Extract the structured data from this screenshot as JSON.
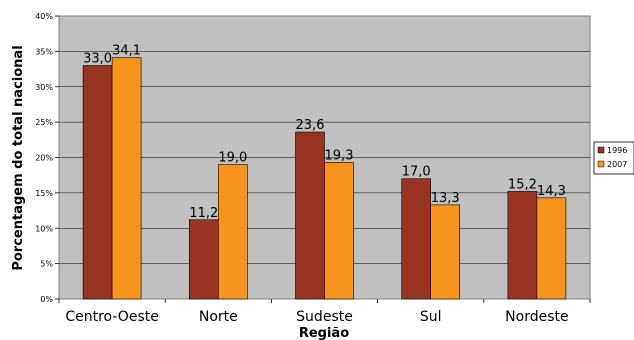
{
  "chart_data": {
    "type": "bar",
    "categories": [
      "Centro-Oeste",
      "Norte",
      "Sudeste",
      "Sul",
      "Nordeste"
    ],
    "series": [
      {
        "name": "1996",
        "values": [
          33.0,
          11.2,
          23.6,
          17.0,
          15.2
        ],
        "labels": [
          "33,0",
          "11,2",
          "23,6",
          "17,0",
          "15,2"
        ],
        "color": "#993322"
      },
      {
        "name": "2007",
        "values": [
          34.1,
          19.0,
          19.3,
          13.3,
          14.3
        ],
        "labels": [
          "34,1",
          "19,0",
          "19,3",
          "13,3",
          "14,3"
        ],
        "color": "#f7941d"
      }
    ],
    "xlabel": "Região",
    "ylabel": "Porcentagem do total nacional",
    "ylim": [
      0,
      40
    ],
    "yticks": [
      0,
      5,
      10,
      15,
      20,
      25,
      30,
      35,
      40
    ],
    "ytick_labels": [
      "0%",
      "5%",
      "10%",
      "15%",
      "20%",
      "25%",
      "30%",
      "35%",
      "40%"
    ],
    "grid": true,
    "plot_background": "#c0c0c0",
    "legend_position": "right"
  }
}
